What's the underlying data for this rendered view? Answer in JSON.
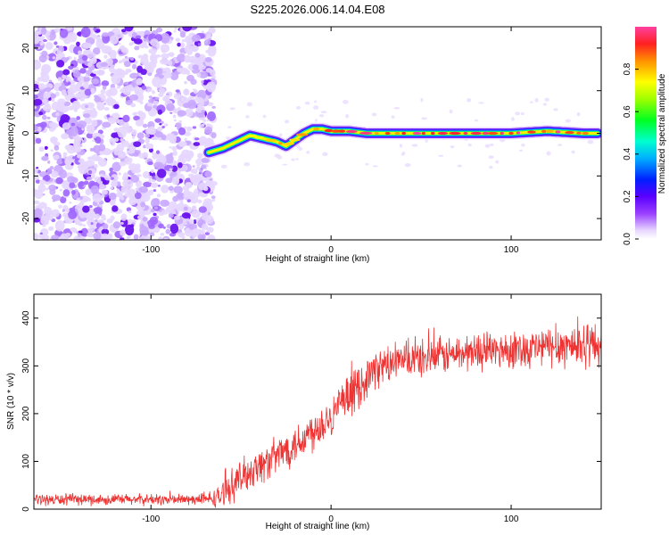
{
  "chart_data": [
    {
      "type": "heatmap",
      "title": "S225.2026.006.14.04.E08",
      "xlabel": "Height of straight line (km)",
      "ylabel": "Frequency (Hz)",
      "xlim": [
        -165,
        150
      ],
      "ylim": [
        -25,
        25
      ],
      "xticks": [
        -100,
        0,
        100
      ],
      "yticks": [
        -20,
        -10,
        0,
        10,
        20
      ],
      "colorbar": {
        "label": "Normalized spectral amplitude",
        "range": [
          0,
          1
        ],
        "ticks": [
          0.0,
          0.2,
          0.4,
          0.6,
          0.8
        ]
      },
      "noise_region": {
        "x_range": [
          -165,
          -67
        ],
        "description": "broadband speckle"
      },
      "ridge": {
        "x": [
          -68,
          -60,
          -50,
          -45,
          -40,
          -35,
          -30,
          -25,
          -20,
          -15,
          -10,
          -5,
          0,
          10,
          20,
          40,
          60,
          80,
          100,
          120,
          140,
          148
        ],
        "y": [
          -4.5,
          -3.5,
          -1.5,
          -0.5,
          -1,
          -1.5,
          -2,
          -3,
          -1.5,
          0,
          1,
          1,
          0.5,
          0.5,
          0,
          0,
          0,
          0,
          0,
          0.5,
          0,
          0
        ]
      }
    },
    {
      "type": "line",
      "title": "",
      "xlabel": "Height of straight line (km)",
      "ylabel": "SNR (10 * v/v)",
      "xlim": [
        -165,
        150
      ],
      "ylim": [
        0,
        450
      ],
      "xticks": [
        -100,
        0,
        100
      ],
      "yticks": [
        0,
        100,
        200,
        300,
        400
      ],
      "color": "#ee3333",
      "envelope": {
        "x": [
          -165,
          -70,
          -62,
          -55,
          -45,
          -35,
          -25,
          -15,
          -5,
          5,
          15,
          25,
          40,
          60,
          80,
          100,
          120,
          140,
          150
        ],
        "mean": [
          20,
          20,
          25,
          50,
          80,
          100,
          125,
          150,
          180,
          215,
          255,
          295,
          310,
          320,
          330,
          335,
          340,
          345,
          345
        ],
        "spread": [
          12,
          12,
          25,
          35,
          40,
          40,
          42,
          45,
          45,
          45,
          45,
          40,
          40,
          40,
          40,
          40,
          45,
          50,
          50
        ]
      }
    }
  ]
}
